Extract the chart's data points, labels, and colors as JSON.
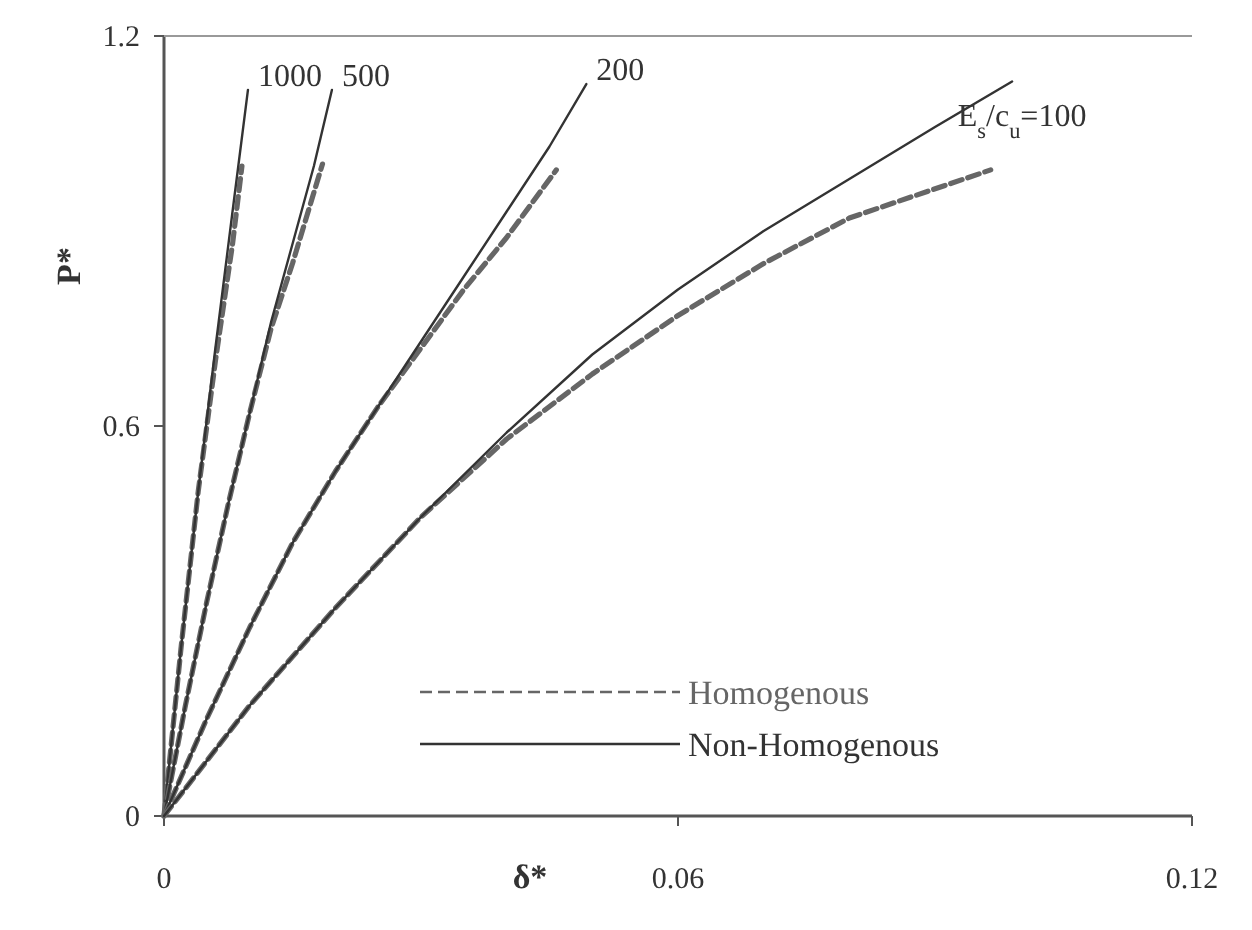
{
  "chart_data": {
    "type": "line",
    "xlabel": "δ*",
    "ylabel": "P*",
    "xlim": [
      0,
      0.12
    ],
    "ylim": [
      0,
      1.2
    ],
    "xticks": [
      0,
      0.06,
      0.12
    ],
    "yticks": [
      0,
      0.6,
      1.2
    ],
    "grid": false,
    "legend": "bottom right",
    "series": [
      {
        "name": "Homogenous",
        "color": "#666666",
        "line_style": "dashed",
        "x": [
          0,
          0.002,
          0.004,
          0.006,
          0.008,
          0.0091
        ],
        "values": [
          0,
          0.26,
          0.5,
          0.7,
          0.88,
          1.0
        ]
      },
      {
        "name": "Non-Homogenous",
        "color": "#333333",
        "line_style": "solid",
        "x": [
          0,
          0.002,
          0.004,
          0.006,
          0.008,
          0.0098
        ],
        "values": [
          0,
          0.26,
          0.5,
          0.72,
          0.93,
          1.117
        ]
      },
      {
        "color": "#666666",
        "line_style": "dashed",
        "x": [
          0,
          0.0025,
          0.005,
          0.0075,
          0.01,
          0.0125,
          0.015,
          0.0185
        ],
        "values": [
          0,
          0.17,
          0.33,
          0.48,
          0.62,
          0.75,
          0.85,
          1.003
        ]
      },
      {
        "color": "#333333",
        "line_style": "solid",
        "x": [
          0,
          0.0025,
          0.005,
          0.0075,
          0.01,
          0.0125,
          0.015,
          0.0175,
          0.0196
        ],
        "values": [
          0,
          0.17,
          0.33,
          0.48,
          0.62,
          0.76,
          0.88,
          1.0,
          1.117
        ]
      },
      {
        "color": "#666666",
        "line_style": "dashed",
        "x": [
          0,
          0.005,
          0.01,
          0.015,
          0.02,
          0.025,
          0.03,
          0.035,
          0.04,
          0.0458
        ],
        "values": [
          0,
          0.15,
          0.29,
          0.42,
          0.53,
          0.63,
          0.72,
          0.81,
          0.89,
          0.994
        ]
      },
      {
        "color": "#333333",
        "line_style": "solid",
        "x": [
          0,
          0.005,
          0.01,
          0.015,
          0.02,
          0.025,
          0.03,
          0.035,
          0.04,
          0.045,
          0.0493
        ],
        "values": [
          0,
          0.15,
          0.29,
          0.42,
          0.53,
          0.63,
          0.73,
          0.83,
          0.93,
          1.03,
          1.126
        ]
      },
      {
        "color": "#666666",
        "line_style": "dashed",
        "x": [
          0,
          0.01,
          0.02,
          0.03,
          0.04,
          0.05,
          0.06,
          0.07,
          0.08,
          0.0965
        ],
        "values": [
          0,
          0.17,
          0.32,
          0.46,
          0.58,
          0.68,
          0.77,
          0.85,
          0.92,
          0.994
        ]
      },
      {
        "color": "#333333",
        "line_style": "solid",
        "x": [
          0,
          0.01,
          0.02,
          0.03,
          0.04,
          0.05,
          0.06,
          0.07,
          0.08,
          0.09,
          0.099
        ],
        "values": [
          0,
          0.17,
          0.32,
          0.46,
          0.59,
          0.71,
          0.81,
          0.9,
          0.98,
          1.06,
          1.13
        ]
      }
    ],
    "annotations": [
      "1000",
      "500",
      "200",
      "E$_{s}$/c$_{u}$=100"
    ]
  }
}
